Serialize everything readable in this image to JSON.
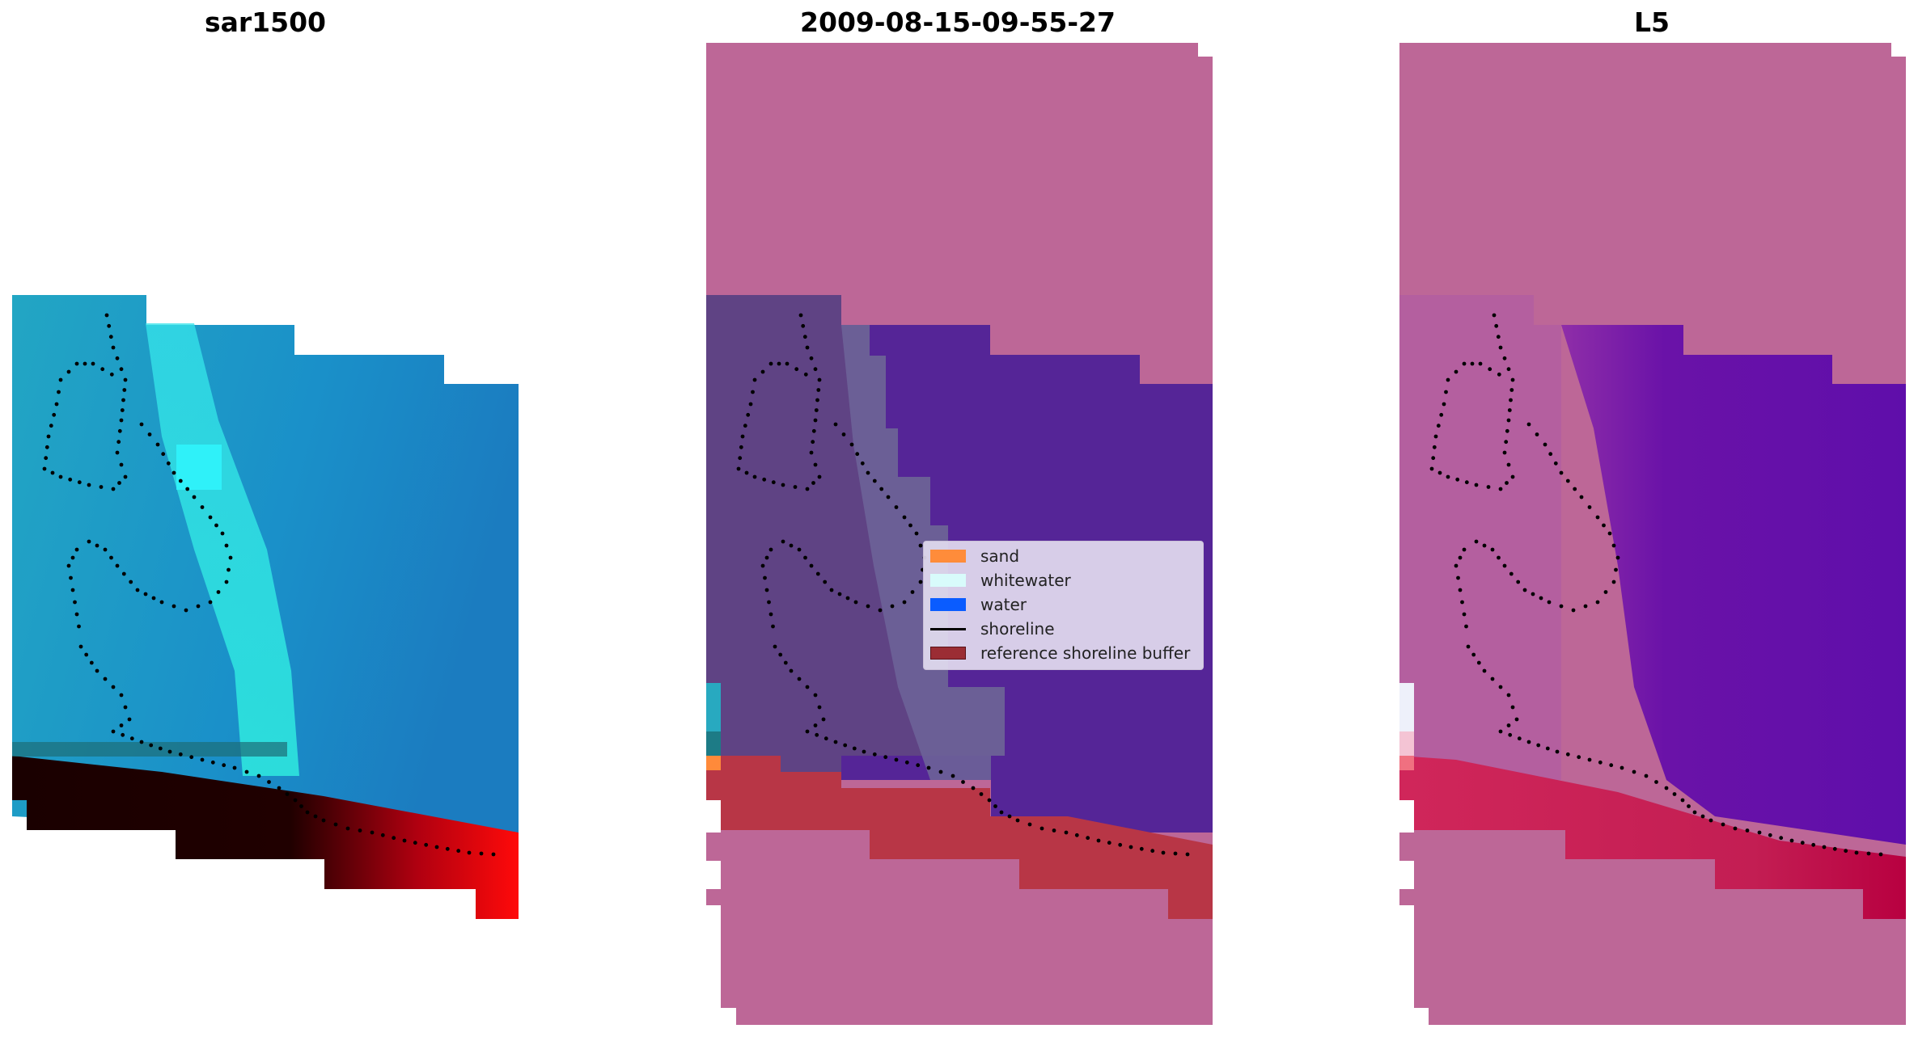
{
  "panels": [
    {
      "title": "sar1500"
    },
    {
      "title": "2009-08-15-09-55-27"
    },
    {
      "title": "L5"
    }
  ],
  "legend": {
    "items": [
      {
        "label": "sand",
        "kind": "patch",
        "color": "#ff8c3a"
      },
      {
        "label": "whitewater",
        "kind": "patch",
        "color": "#d8fbfb"
      },
      {
        "label": "water",
        "kind": "patch",
        "color": "#0a5cff"
      },
      {
        "label": "shoreline",
        "kind": "line",
        "color": "#000000"
      },
      {
        "label": "reference shoreline buffer",
        "kind": "patch",
        "color": "#9b2d34"
      }
    ]
  },
  "colors": {
    "no_data_mask": "#bd6797",
    "ocean_blue": "#1a7fc0",
    "bright_cyan": "#33f0e8",
    "water_class": "#552597",
    "buffer_red": "#bb3a4a",
    "l5_water": "#6a14a8"
  }
}
